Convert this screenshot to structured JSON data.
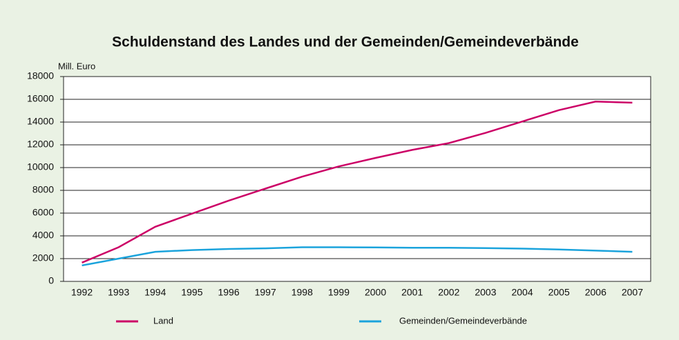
{
  "chart_data": {
    "type": "line",
    "title": "Schuldenstand des Landes und der Gemeinden/Gemeindeverbände",
    "y_label": "Mill. Euro",
    "categories": [
      "1992",
      "1993",
      "1994",
      "1995",
      "1996",
      "1997",
      "1998",
      "1999",
      "2000",
      "2001",
      "2002",
      "2003",
      "2004",
      "2005",
      "2006",
      "2007"
    ],
    "series": [
      {
        "name": "Land",
        "color": "#cc0066",
        "values": [
          1650,
          3000,
          4800,
          5950,
          7100,
          8150,
          9200,
          10100,
          10850,
          11550,
          12150,
          13050,
          14050,
          15050,
          15800,
          15700
        ]
      },
      {
        "name": "Gemeinden/Gemeindeverbände",
        "color": "#1aa3dc",
        "values": [
          1400,
          2000,
          2600,
          2750,
          2850,
          2900,
          3000,
          3000,
          2980,
          2950,
          2950,
          2920,
          2880,
          2800,
          2700,
          2600
        ]
      }
    ],
    "ylim": [
      0,
      18000
    ],
    "yticks": [
      0,
      2000,
      4000,
      6000,
      8000,
      10000,
      12000,
      14000,
      16000,
      18000
    ],
    "grid": true,
    "legend": "bottom"
  }
}
